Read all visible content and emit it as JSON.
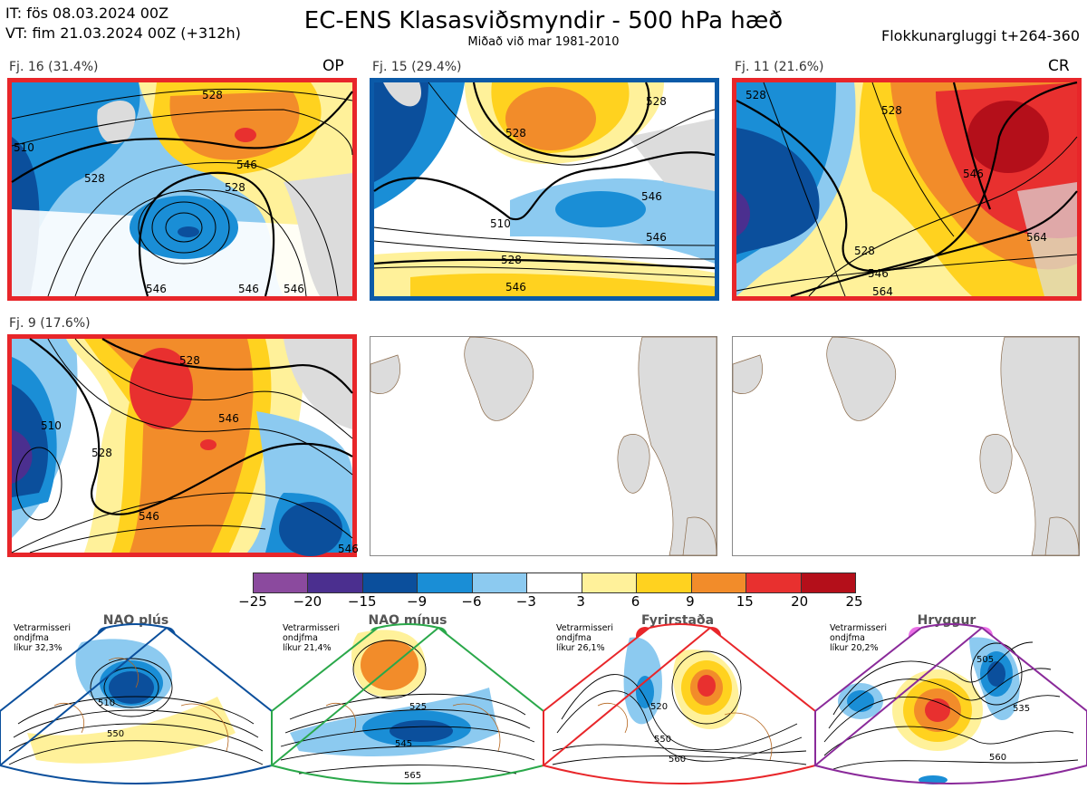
{
  "header": {
    "it_line": "IT: fös 08.03.2024 00Z",
    "vt_line": "VT: fim 21.03.2024 00Z  (+312h)",
    "title": "EC-ENS Klasasviðsmyndir - 500 hPa hæð",
    "subtitle": "Miðað við mar 1981-2010",
    "window": "Flokkunargluggi t+264-360"
  },
  "panels": [
    {
      "label": "Fj. 16 (31.4%)",
      "tag": "OP",
      "border": "#e8262a",
      "contours": [
        "528",
        "528",
        "528",
        "546",
        "546",
        "546",
        "546",
        "510"
      ]
    },
    {
      "label": "Fj. 15 (29.4%)",
      "tag": "",
      "border": "#0b5aa8",
      "contours": [
        "528",
        "528",
        "510",
        "528",
        "546",
        "546",
        "546"
      ]
    },
    {
      "label": "Fj. 11 (21.6%)",
      "tag": "CR",
      "border": "#e8262a",
      "contours": [
        "528",
        "528",
        "546",
        "564",
        "528",
        "546",
        "564"
      ]
    },
    {
      "label": "Fj. 9 (17.6%)",
      "tag": "",
      "border": "#e8262a",
      "contours": [
        "528",
        "546",
        "510",
        "528",
        "546",
        "546"
      ]
    }
  ],
  "colorbar": {
    "colors": [
      "#8b4a9e",
      "#4b2f8f",
      "#0b4f9c",
      "#1a8ed6",
      "#8ccaf0",
      "#ffffff",
      "#fff19a",
      "#ffd21f",
      "#f28c2a",
      "#e8302f",
      "#b40f1a"
    ],
    "labels": [
      "−25",
      "−20",
      "−15",
      "−9",
      "−6",
      "−3",
      "3",
      "6",
      "9",
      "15",
      "20",
      "25"
    ]
  },
  "regimes": [
    {
      "name": "NAO plús",
      "line1": "Vetrarmisseri",
      "line2": "ondjfma",
      "line3": "líkur 32,3%",
      "dot": "#0b4f9c",
      "border": "#0b4f9c",
      "contours": [
        "510",
        "550"
      ]
    },
    {
      "name": "NAO mínus",
      "line1": "Vetrarmisseri",
      "line2": "ondjfma",
      "line3": "líkur 21,4%",
      "dot": "#2aa84a",
      "border": "#2aa84a",
      "contours": [
        "525",
        "545",
        "565"
      ]
    },
    {
      "name": "Fyrirstaða",
      "line1": "Vetrarmisseri",
      "line2": "ondjfma",
      "line3": "líkur 26,1%",
      "dot": "#e8262a",
      "border": "#e8262a",
      "contours": [
        "520",
        "550",
        "560"
      ]
    },
    {
      "name": "Hryggur",
      "line1": "Vetrarmisseri",
      "line2": "ondjfma",
      "line3": "líkur 20,2%",
      "dot": "#ea6fe6",
      "border": "#8a2a9a",
      "contours": [
        "505",
        "535",
        "560"
      ]
    }
  ],
  "icons": {
    "land": "landmass-shape",
    "regime_marker": "circle-marker"
  }
}
